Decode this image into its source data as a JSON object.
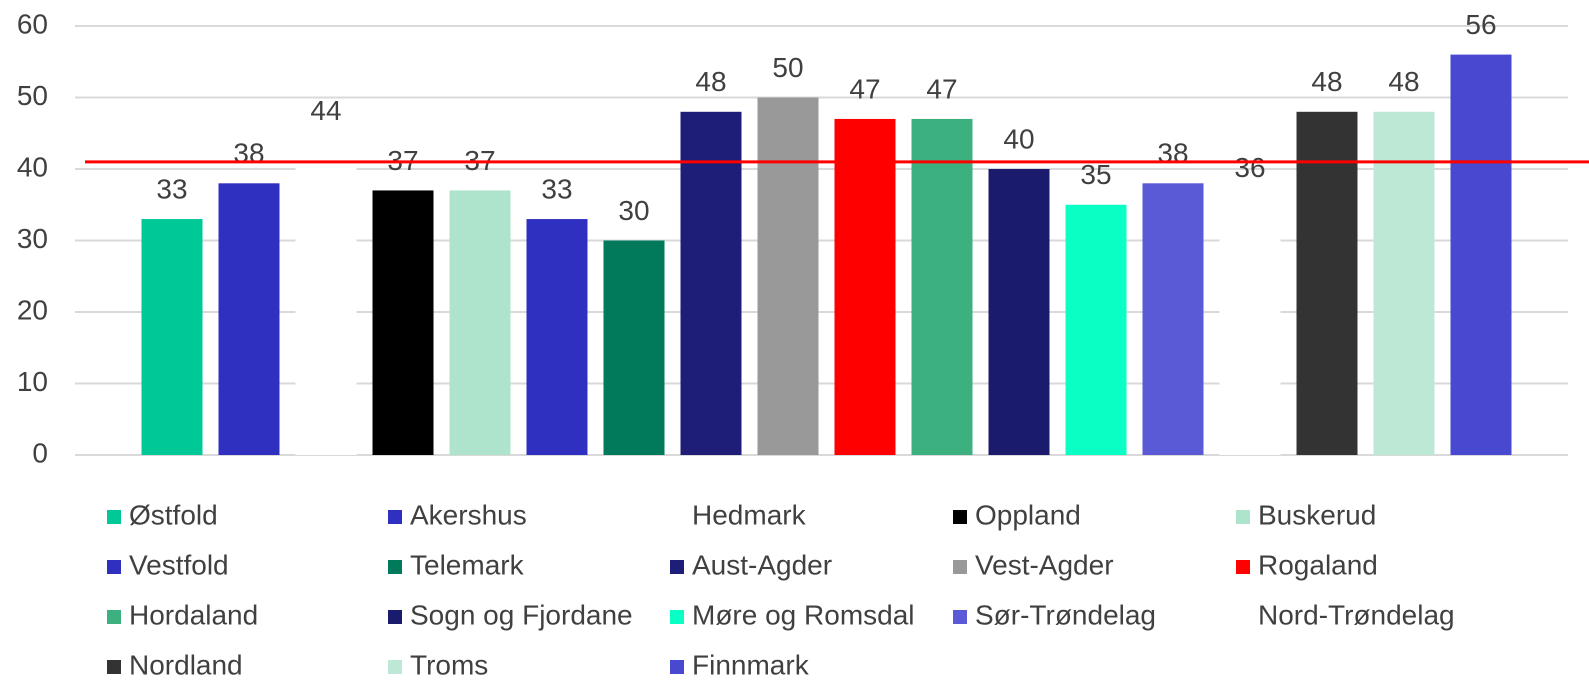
{
  "chart_data": {
    "type": "bar",
    "categories": [
      "Østfold",
      "Akershus",
      "Hedmark",
      "Oppland",
      "Buskerud",
      "Vestfold",
      "Telemark",
      "Aust-Agder",
      "Vest-Agder",
      "Rogaland",
      "Hordaland",
      "Sogn og Fjordane",
      "Møre og Romsdal",
      "Sør-Trøndelag",
      "Nord-Trøndelag",
      "Nordland",
      "Troms",
      "Finnmark"
    ],
    "values": [
      33,
      38,
      44,
      37,
      37,
      33,
      30,
      48,
      50,
      47,
      47,
      40,
      35,
      38,
      36,
      48,
      48,
      56
    ],
    "colors": [
      "#00c896",
      "#3030c0",
      "#ffffff",
      "#000000",
      "#aee3cc",
      "#3030c0",
      "#007a5a",
      "#1e1e78",
      "#999999",
      "#ff0000",
      "#3cb07e",
      "#1b1b6e",
      "#0affc4",
      "#5a5ad6",
      "#ffffff",
      "#333333",
      "#bde8d6",
      "#4848d0"
    ],
    "ylim": [
      0,
      60
    ],
    "yticks": [
      0,
      10,
      20,
      30,
      40,
      50,
      60
    ],
    "grid": true,
    "reference_line": {
      "value": 41,
      "color": "#ff0000"
    },
    "legend": "bottom"
  }
}
